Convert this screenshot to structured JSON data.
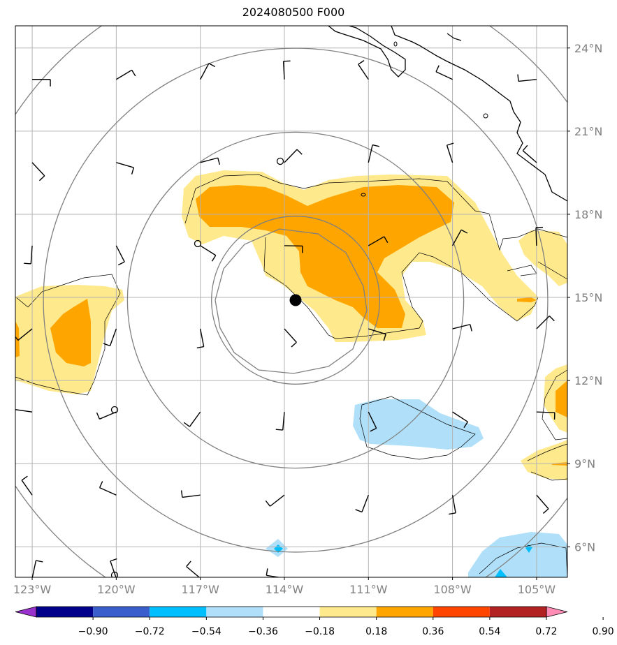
{
  "title": "2024080500 F000",
  "map": {
    "lon_ticks": [
      "123°W",
      "120°W",
      "117°W",
      "114°W",
      "111°W",
      "108°W",
      "105°W"
    ],
    "lat_ticks": [
      "24°N",
      "21°N",
      "18°N",
      "15°N",
      "12°N",
      "9°N",
      "6°N"
    ],
    "extent": {
      "lon": [
        -123.6,
        -103.9
      ],
      "lat": [
        4.9,
        24.8
      ]
    },
    "storm_center": {
      "lon": -113.6,
      "lat": 14.9
    },
    "range_ring_radii_deg": [
      3,
      6,
      9,
      12
    ],
    "colors": {
      "grid": "#b4b4b4",
      "ring": "#808080",
      "coast": "#000000",
      "pos_light": "#ffe98d",
      "pos_mid": "#ffa500",
      "neg_light": "#b0e0f9",
      "neg_mid": "#00bfff"
    }
  },
  "colorbar": {
    "labels": [
      "−0.90",
      "−0.72",
      "−0.54",
      "−0.36",
      "−0.18",
      "0.18",
      "0.36",
      "0.54",
      "0.72",
      "0.90"
    ],
    "colors": [
      "#9932cc",
      "#00008b",
      "#3a5fcd",
      "#00bfff",
      "#b0e0f9",
      "#ffffff",
      "#ffe98d",
      "#ffa500",
      "#ff4500",
      "#b22222",
      "#ff8cb4"
    ]
  }
}
